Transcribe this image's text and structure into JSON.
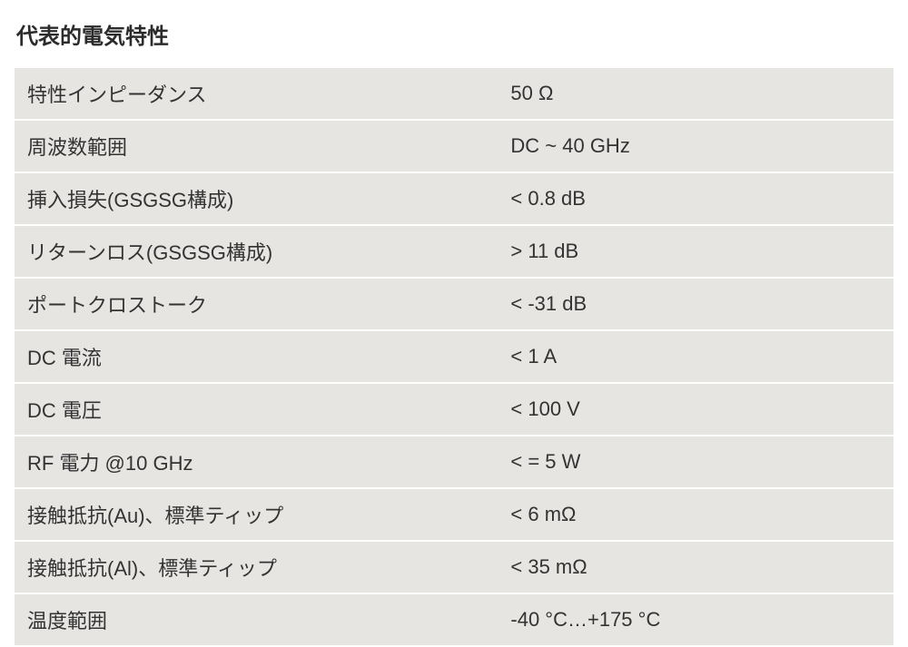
{
  "title": "代表的電気特性",
  "table": {
    "background_color": "#e7e5e2",
    "text_color": "#333333",
    "font_size": 22,
    "row_gap": 2,
    "rows": [
      {
        "label": "特性インピーダンス",
        "value": "50 Ω"
      },
      {
        "label": "周波数範囲",
        "value": "DC ~ 40 GHz"
      },
      {
        "label": "挿入損失(GSGSG構成)",
        "value": "< 0.8 dB"
      },
      {
        "label": "リターンロス(GSGSG構成)",
        "value": "> 11 dB"
      },
      {
        "label": "ポートクロストーク",
        "value": "< -31 dB"
      },
      {
        "label": "DC 電流",
        "value": "< 1 A"
      },
      {
        "label": "DC 電圧",
        "value": "< 100 V"
      },
      {
        "label": "RF 電力 @10 GHz",
        "value": "< = 5 W"
      },
      {
        "label": "接触抵抗(Au)、標準ティップ",
        "value": "< 6 mΩ"
      },
      {
        "label": "接触抵抗(Al)、標準ティップ",
        "value": "< 35 mΩ"
      },
      {
        "label": "温度範囲",
        "value": "-40 °C…+175 °C"
      }
    ]
  }
}
